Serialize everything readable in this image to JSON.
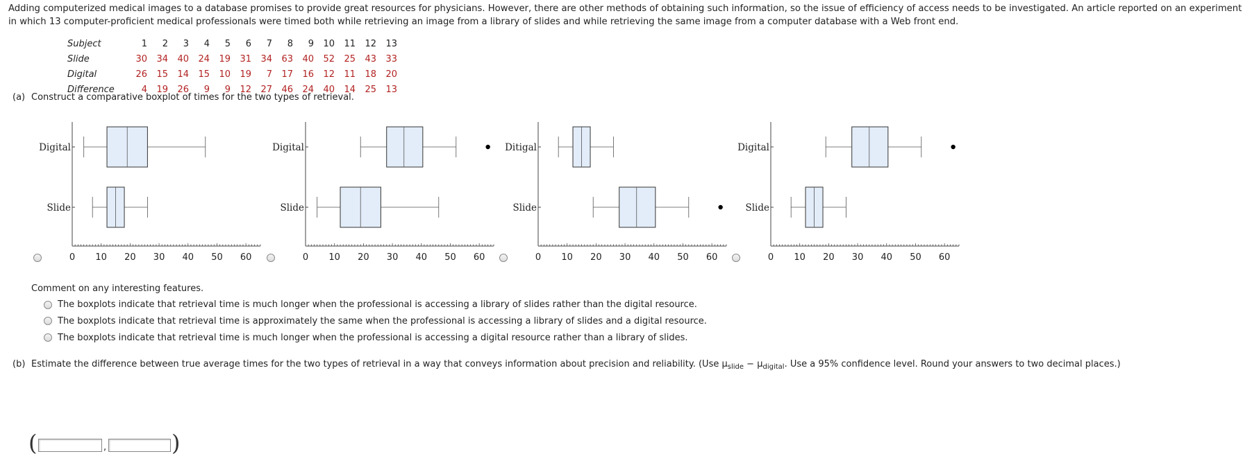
{
  "intro": "Adding computerized medical images to a database promises to provide great resources for physicians. However, there are other methods of obtaining such information, so the issue of efficiency of access needs to be investigated. An article reported on an experiment in which 13 computer-proficient medical professionals were timed both while retrieving an image from a library of slides and while retrieving the same image from a computer database with a Web front end.",
  "table": {
    "rows": [
      {
        "label": "Subject",
        "values": [
          "1",
          "2",
          "3",
          "4",
          "5",
          "6",
          "7",
          "8",
          "9",
          "10",
          "11",
          "12",
          "13"
        ]
      },
      {
        "label": "Slide",
        "values": [
          "30",
          "34",
          "40",
          "24",
          "19",
          "31",
          "34",
          "63",
          "40",
          "52",
          "25",
          "43",
          "33"
        ]
      },
      {
        "label": "Digital",
        "values": [
          "26",
          "15",
          "14",
          "15",
          "10",
          "19",
          "7",
          "17",
          "16",
          "12",
          "11",
          "18",
          "20"
        ]
      },
      {
        "label": "Difference",
        "values": [
          "4",
          "19",
          "26",
          "9",
          "9",
          "12",
          "27",
          "46",
          "24",
          "40",
          "14",
          "25",
          "13"
        ]
      }
    ]
  },
  "part_a": {
    "label": "(a)",
    "text": "Construct a comparative boxplot of times for the two types of retrieval."
  },
  "plots": [
    {
      "top_label": "Digital",
      "bottom_label": "Slide",
      "top_box": {
        "min": 4,
        "q1": 12,
        "median": 19,
        "q3": 26,
        "max": 46,
        "outlier": null
      },
      "bottom_box": {
        "min": 7,
        "q1": 12,
        "median": 15,
        "q3": 18,
        "max": 26,
        "outlier": null
      }
    },
    {
      "top_label": "Digital",
      "bottom_label": "Slide",
      "top_box": {
        "min": 19,
        "q1": 28,
        "median": 34,
        "q3": 40.5,
        "max": 52,
        "outlier": 63
      },
      "bottom_box": {
        "min": 4,
        "q1": 12,
        "median": 19,
        "q3": 26,
        "max": 46,
        "outlier": null
      }
    },
    {
      "top_label": "Ditigal",
      "bottom_label": "Slide",
      "top_box": {
        "min": 7,
        "q1": 12,
        "median": 15,
        "q3": 18,
        "max": 26,
        "outlier": null
      },
      "bottom_box": {
        "min": 19,
        "q1": 28,
        "median": 34,
        "q3": 40.5,
        "max": 52,
        "outlier": 63
      }
    },
    {
      "top_label": "Digital",
      "bottom_label": "Slide",
      "top_box": {
        "min": 19,
        "q1": 28,
        "median": 34,
        "q3": 40.5,
        "max": 52,
        "outlier": 63
      },
      "bottom_box": {
        "min": 7,
        "q1": 12,
        "median": 15,
        "q3": 18,
        "max": 26,
        "outlier": null
      }
    }
  ],
  "axis_ticks": [
    "0",
    "10",
    "20",
    "30",
    "40",
    "50",
    "60"
  ],
  "axis_range": [
    0,
    65
  ],
  "comment": {
    "prompt": "Comment on any interesting features.",
    "options": [
      "The boxplots indicate that retrieval time is much longer when the professional is accessing a library of slides rather than the digital resource.",
      "The boxplots indicate that retrieval time is approximately the same when the professional is accessing a library of slides and a digital resource.",
      "The boxplots indicate that retrieval time is much longer when the professional is accessing a digital resource rather than a library of slides."
    ]
  },
  "part_b": {
    "label": "(b)",
    "text_before": "Estimate the difference between true average times for the two types of retrieval in a way that conveys information about precision and reliability. (Use μ",
    "sub1": "slide",
    "minus": " − μ",
    "sub2": "digital",
    "text_after": ". Use a 95% confidence level. Round your answers to two decimal places.)",
    "comma": ",",
    "lower_value": "",
    "upper_value": ""
  },
  "colors": {
    "box_fill": "#e3edf9",
    "number_red": "#b22222"
  }
}
